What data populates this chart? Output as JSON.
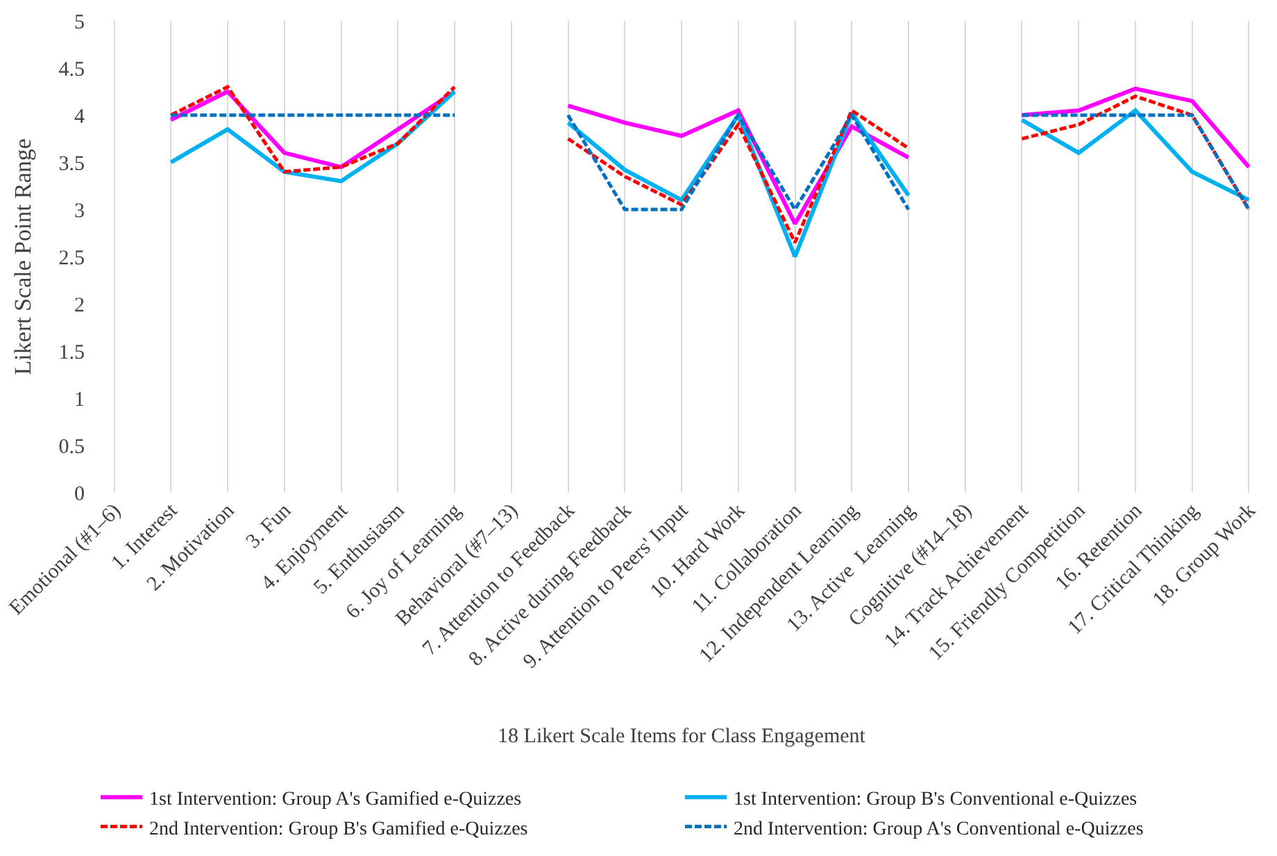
{
  "chart_data": {
    "type": "line",
    "xlabel": "18 Likert Scale Items for Class Engagement",
    "ylabel": "Likert Scale Point Range",
    "categories": [
      "Emotional (#1–6)",
      "1. Interest",
      "2. Motivation",
      "3. Fun",
      "4. Enjoyment",
      "5. Enthusiasm",
      "6. Joy of Learning",
      "Behavioral (#7–13)",
      "7. Attention to Feedback",
      "8. Active during Feedback",
      "9. Attention to Peers' Input",
      "10. Hard Work",
      "11. Collaboration",
      "12. Independent Learning",
      "13. Active  Learning",
      "Cognitive (#14–18)",
      "14. Track Achievement",
      "15. Friendly Competition",
      "16. Retention",
      "17. Critical Thinking",
      "18. Group Work"
    ],
    "series": [
      {
        "name": "1st Intervention: Group A's Gamified e-Quizzes",
        "color": "#ff00ff",
        "line_style": "solid",
        "values": [
          null,
          3.95,
          4.25,
          3.6,
          3.45,
          3.85,
          4.25,
          null,
          4.1,
          3.92,
          3.78,
          4.05,
          2.85,
          3.88,
          3.55,
          null,
          4.0,
          4.05,
          4.28,
          4.15,
          3.45
        ]
      },
      {
        "name": "1st Intervention: Group B's Conventional e-Quizzes",
        "color": "#00b0f0",
        "line_style": "solid",
        "values": [
          null,
          3.5,
          3.85,
          3.4,
          3.3,
          3.7,
          4.25,
          null,
          3.92,
          3.42,
          3.1,
          4.0,
          2.5,
          4.02,
          3.15,
          null,
          3.95,
          3.6,
          4.05,
          3.4,
          3.1
        ]
      },
      {
        "name": "2nd Intervention: Group B's Gamified e-Quizzes",
        "color": "#ff0000",
        "line_style": "dashed",
        "values": [
          null,
          4.0,
          4.3,
          3.4,
          3.45,
          3.7,
          4.3,
          null,
          3.75,
          3.35,
          3.05,
          3.9,
          2.65,
          4.05,
          3.65,
          null,
          3.75,
          3.9,
          4.2,
          4.0,
          3.0
        ]
      },
      {
        "name": "2nd Intervention: Group A's Conventional e-Quizzes",
        "color": "#0070c0",
        "line_style": "dashed",
        "values": [
          null,
          4.0,
          4.0,
          4.0,
          4.0,
          4.0,
          4.0,
          null,
          4.0,
          3.0,
          3.0,
          4.0,
          3.0,
          4.0,
          3.0,
          null,
          4.0,
          4.0,
          4.0,
          4.0,
          3.0
        ]
      }
    ],
    "ylim": [
      0,
      5
    ],
    "yticks": [
      0,
      0.5,
      1,
      1.5,
      2,
      2.5,
      3,
      3.5,
      4,
      4.5,
      5
    ],
    "grid": "x",
    "legend": "bottom",
    "marker": "none"
  }
}
